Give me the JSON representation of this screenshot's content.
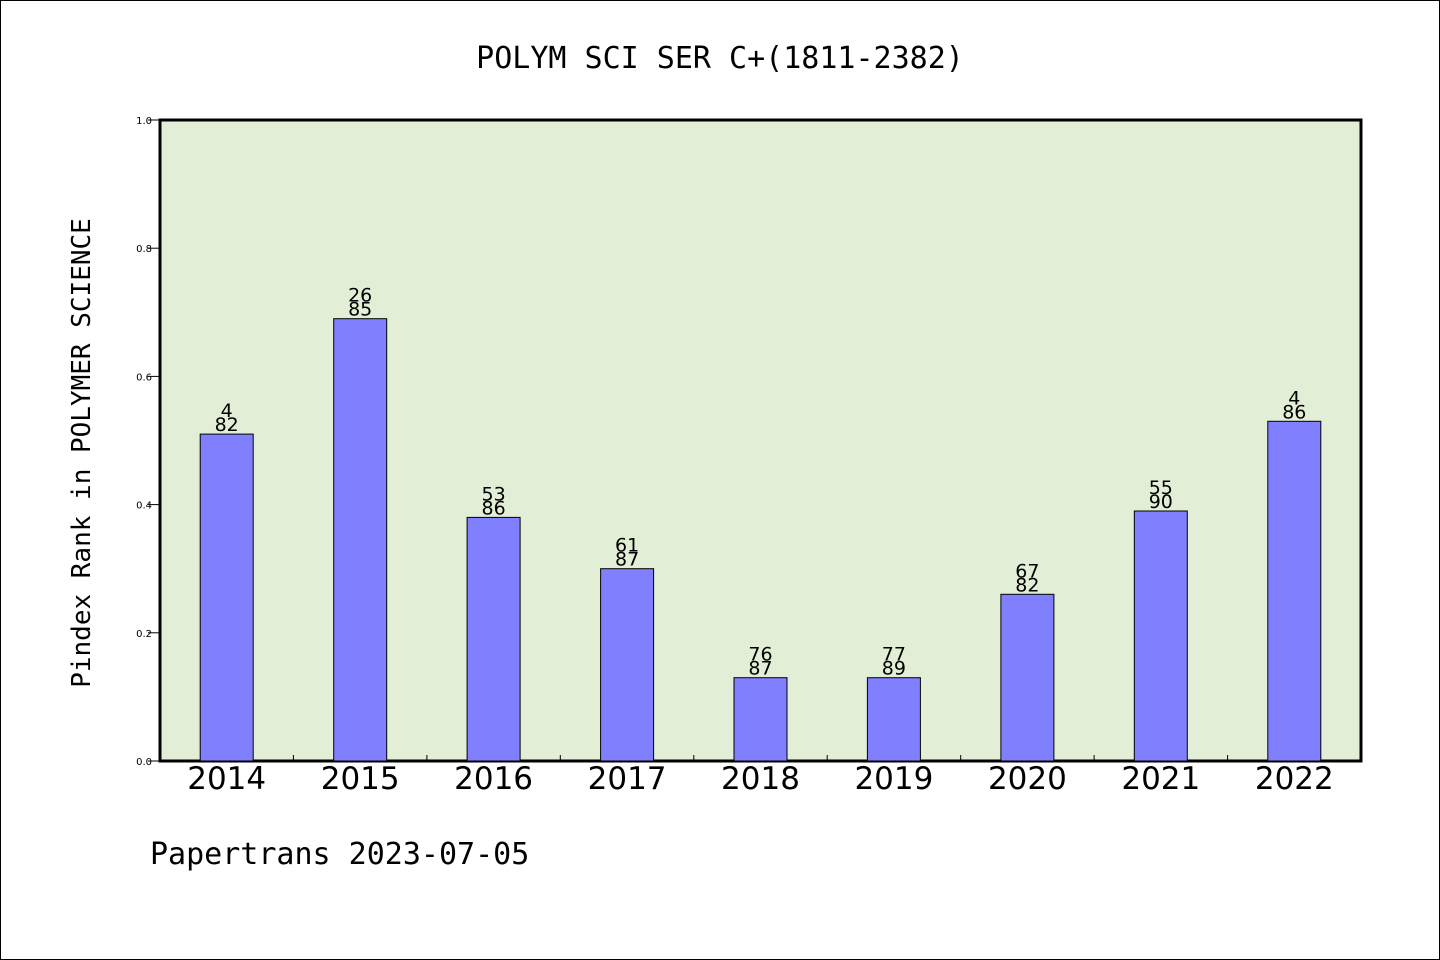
{
  "chart_data": {
    "type": "bar",
    "title": "POLYM SCI SER C+(1811-2382)",
    "ylabel": "Pindex Rank in POLYMER SCIENCE",
    "xlabel": "",
    "ylim": [
      0,
      1.0
    ],
    "yticks": [
      "0.0",
      "0.2",
      "0.4",
      "0.6",
      "0.8",
      "1.0"
    ],
    "categories": [
      "2014",
      "2015",
      "2016",
      "2017",
      "2018",
      "2019",
      "2020",
      "2021",
      "2022"
    ],
    "values": [
      0.51,
      0.69,
      0.38,
      0.3,
      0.13,
      0.13,
      0.26,
      0.39,
      0.53
    ],
    "rank": [
      "4",
      "26",
      "53",
      "61",
      "76",
      "77",
      "67",
      "55",
      "4"
    ],
    "total": [
      "82",
      "85",
      "86",
      "87",
      "87",
      "89",
      "82",
      "90",
      "86"
    ],
    "colors": {
      "plot_bg": "#e2efd6",
      "bar": "#8080ff",
      "axis": "#000000"
    },
    "grid": false,
    "legend": "none"
  },
  "footer": "Papertrans 2023-07-05"
}
